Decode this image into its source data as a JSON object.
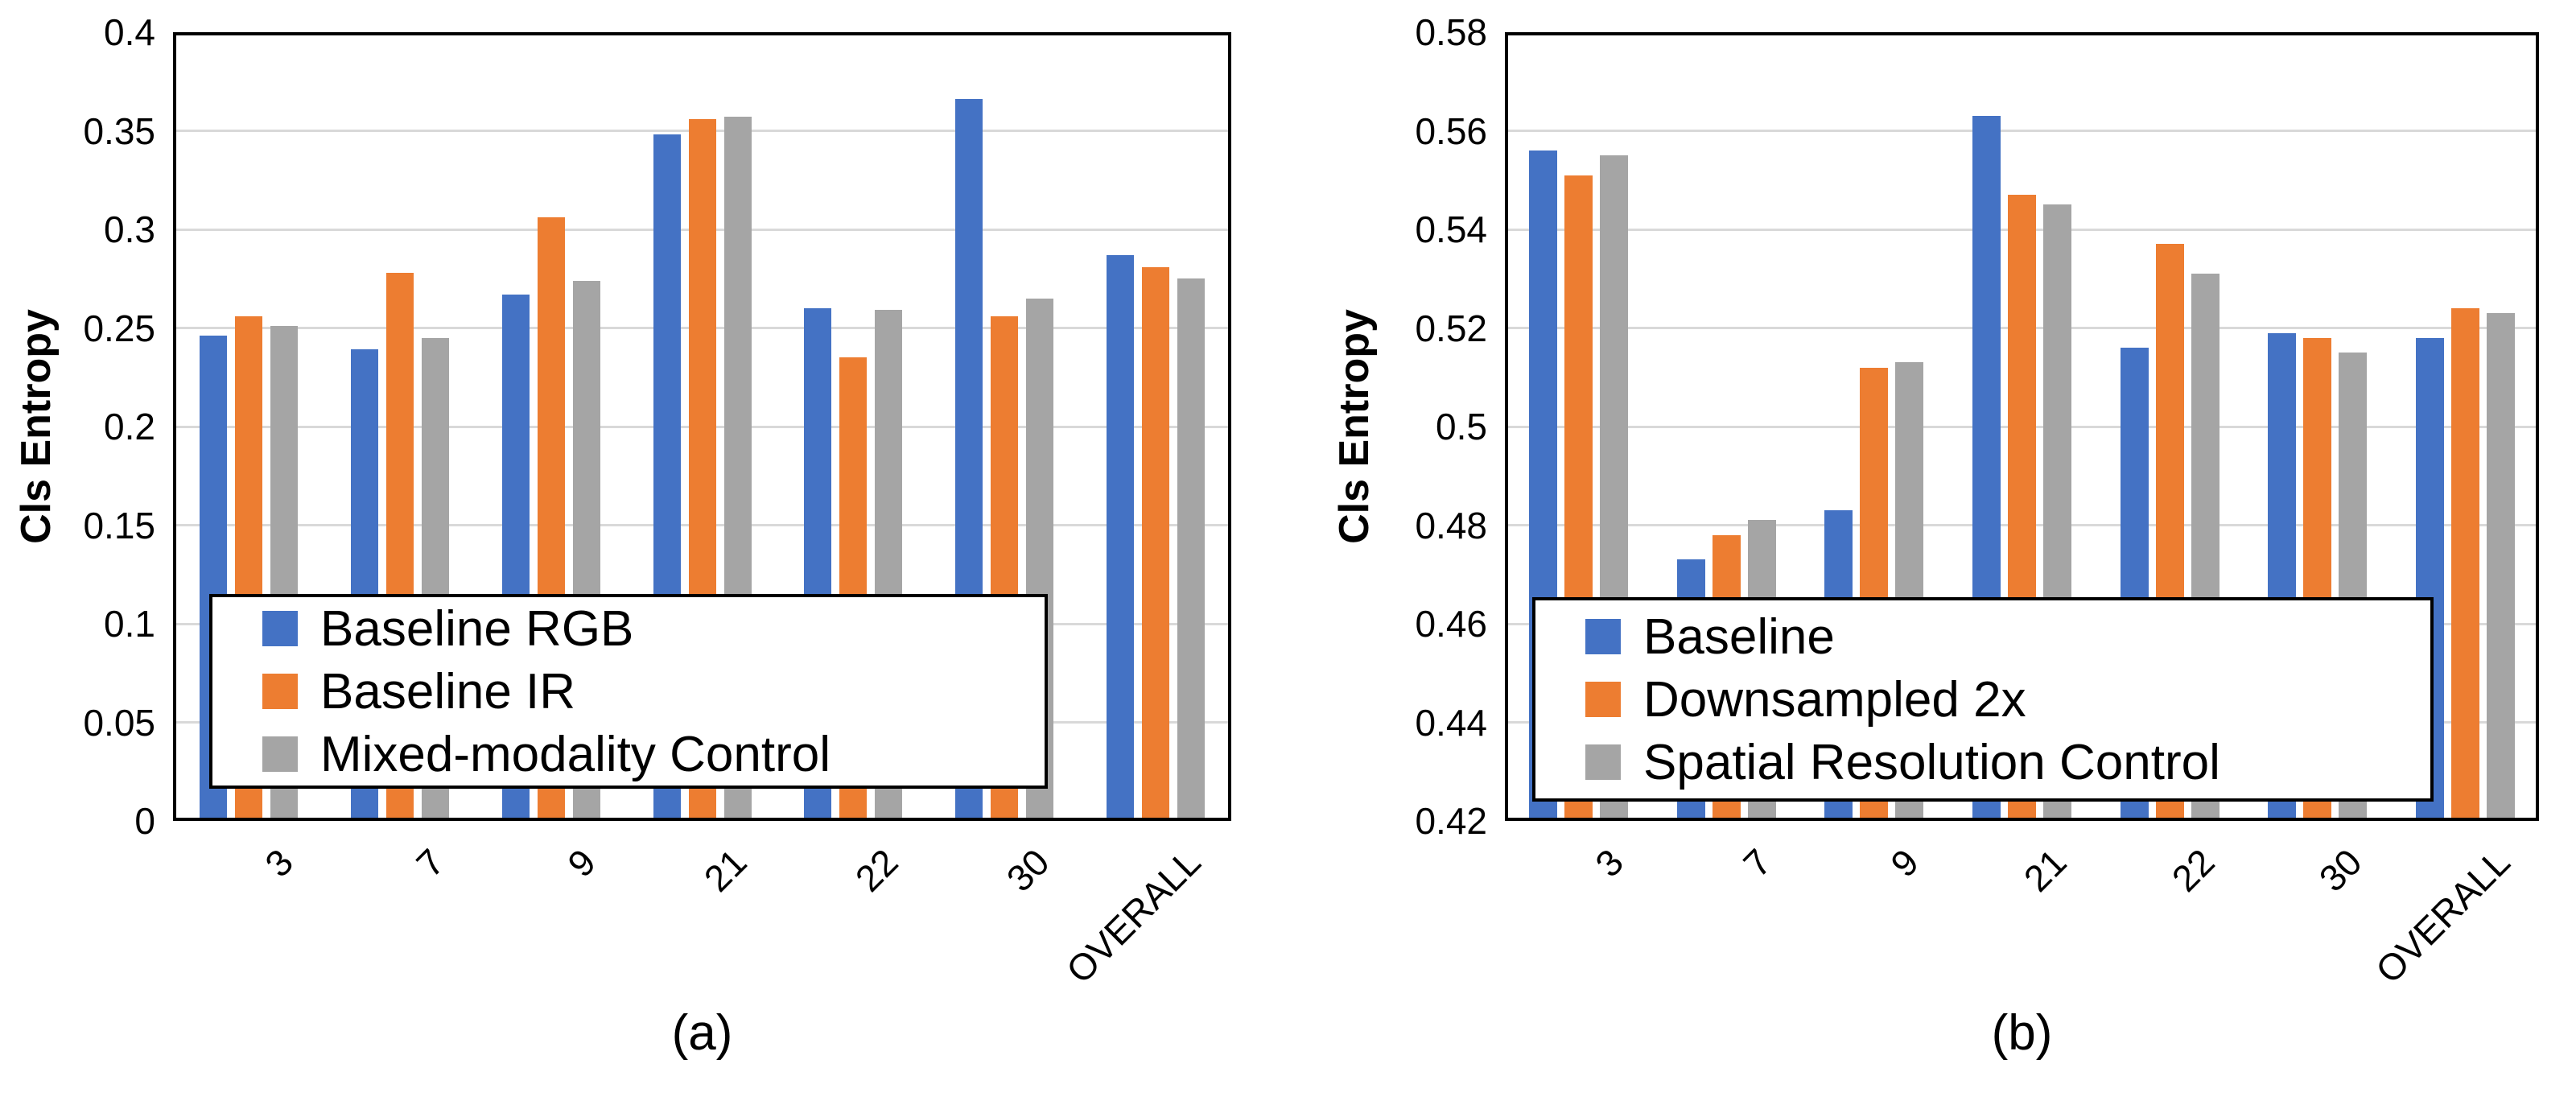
{
  "chart_data": [
    {
      "type": "bar",
      "title": "",
      "caption": "(a)",
      "ylabel": "Cls Entropy",
      "xlabel": "",
      "categories": [
        "3",
        "7",
        "9",
        "21",
        "22",
        "30",
        "OVERALL"
      ],
      "series": [
        {
          "name": "Baseline RGB",
          "color": "#4472C4",
          "values": [
            0.246,
            0.239,
            0.267,
            0.348,
            0.26,
            0.366,
            0.287
          ]
        },
        {
          "name": "Baseline IR",
          "color": "#ED7D31",
          "values": [
            0.256,
            0.278,
            0.306,
            0.356,
            0.235,
            0.256,
            0.281
          ]
        },
        {
          "name": "Mixed-modality Control",
          "color": "#A5A5A5",
          "values": [
            0.251,
            0.245,
            0.274,
            0.357,
            0.259,
            0.265,
            0.275
          ]
        }
      ],
      "ylim": [
        0,
        0.4
      ],
      "ytick_labels": [
        "0",
        "0.05",
        "0.1",
        "0.15",
        "0.2",
        "0.25",
        "0.3",
        "0.35",
        "0.4"
      ],
      "grid": "horizontal",
      "legend_position": "inside-bottom-left"
    },
    {
      "type": "bar",
      "title": "",
      "caption": "(b)",
      "ylabel": "Cls Entropy",
      "xlabel": "",
      "categories": [
        "3",
        "7",
        "9",
        "21",
        "22",
        "30",
        "OVERALL"
      ],
      "series": [
        {
          "name": "Baseline",
          "color": "#4472C4",
          "values": [
            0.556,
            0.473,
            0.483,
            0.563,
            0.516,
            0.519,
            0.518
          ]
        },
        {
          "name": "Downsampled 2x",
          "color": "#ED7D31",
          "values": [
            0.551,
            0.478,
            0.512,
            0.547,
            0.537,
            0.518,
            0.524
          ]
        },
        {
          "name": "Spatial Resolution Control",
          "color": "#A5A5A5",
          "values": [
            0.555,
            0.481,
            0.513,
            0.545,
            0.531,
            0.515,
            0.523
          ]
        }
      ],
      "ylim": [
        0.42,
        0.58
      ],
      "ytick_labels": [
        "0.42",
        "0.44",
        "0.46",
        "0.48",
        "0.5",
        "0.52",
        "0.54",
        "0.56",
        "0.58"
      ],
      "grid": "horizontal",
      "legend_position": "inside-bottom-left"
    }
  ],
  "style": {
    "background": "#FFFFFF",
    "axis_color": "#000000",
    "gridline_color": "#D9D9D9",
    "text_color": "#000000"
  }
}
